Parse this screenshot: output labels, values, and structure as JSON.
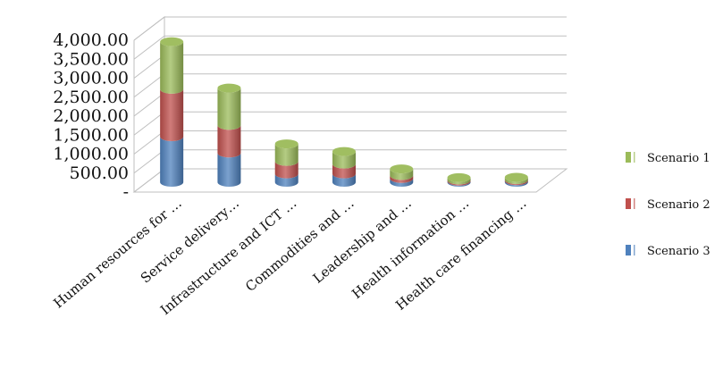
{
  "chart_data": {
    "type": "bar",
    "stacked": true,
    "three_d": true,
    "categories": [
      "Human resources for …",
      "Service delivery…",
      "Infrastructure and ICT …",
      "Commodities and …",
      "Leadership and …",
      "Health information …",
      "Health care financing …"
    ],
    "series": [
      {
        "name": "Scenario 3",
        "color": "#4f81bd",
        "values": [
          1200,
          770,
          220,
          220,
          100,
          30,
          40
        ]
      },
      {
        "name": "Scenario 2",
        "color": "#c0504d",
        "values": [
          1250,
          730,
          330,
          260,
          80,
          30,
          30
        ]
      },
      {
        "name": "Scenario 1",
        "color": "#9bbb59",
        "values": [
          1250,
          980,
          460,
          330,
          170,
          60,
          60
        ]
      }
    ],
    "y_ticks": [
      "-",
      "500.00",
      "1,000.00",
      "1,500.00",
      "2,000.00",
      "2,500.00",
      "3,000.00",
      "3,500.00",
      "4,000.00"
    ],
    "y_tick_values": [
      0,
      500,
      1000,
      1500,
      2000,
      2500,
      3000,
      3500,
      4000
    ],
    "ylim": [
      0,
      4000
    ],
    "grid": true,
    "legend_position": "right",
    "legend_order": [
      "Scenario 1",
      "Scenario 2",
      "Scenario 3"
    ],
    "title": "",
    "xlabel": "",
    "ylabel": ""
  }
}
